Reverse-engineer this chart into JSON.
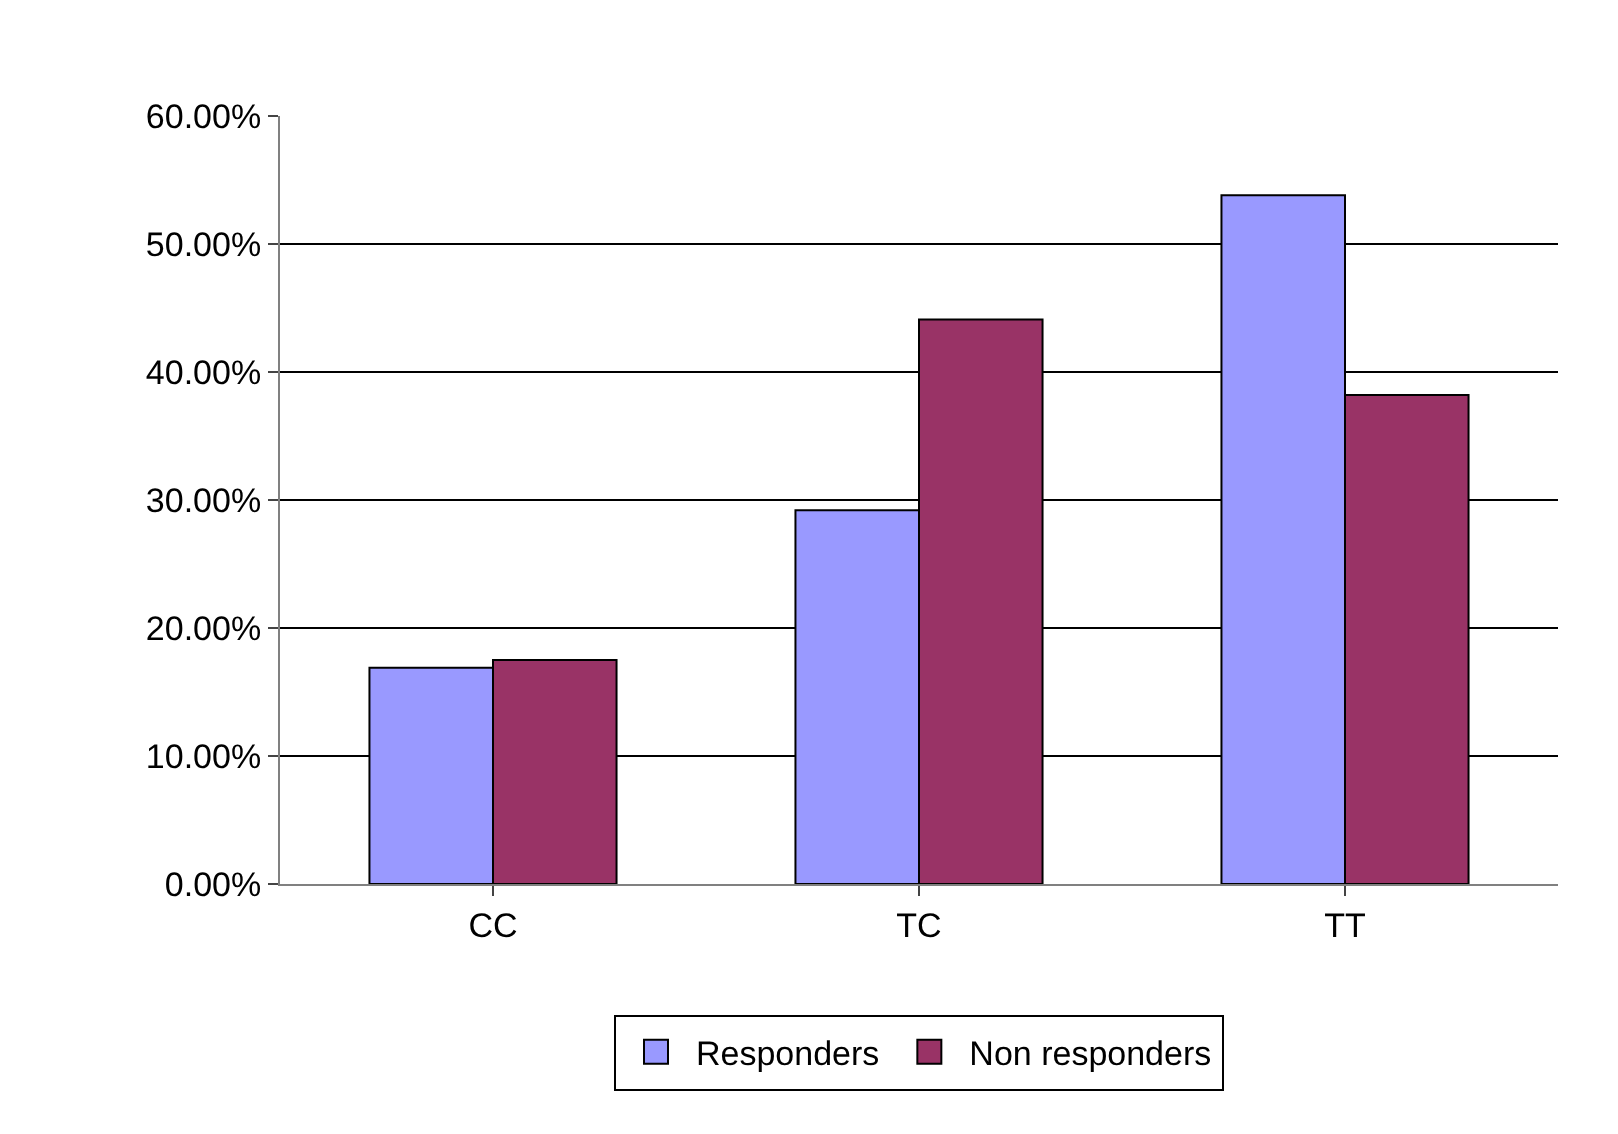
{
  "chart_data": {
    "type": "bar",
    "categories": [
      "CC",
      "TC",
      "TT"
    ],
    "series": [
      {
        "name": "Responders",
        "color": "#9999ff",
        "values": [
          16.9,
          29.2,
          53.8
        ]
      },
      {
        "name": "Non responders",
        "color": "#993366",
        "values": [
          17.5,
          44.1,
          38.2
        ]
      }
    ],
    "ylim": [
      0,
      60
    ],
    "yticks": [
      {
        "value": 0,
        "label": "0.00%"
      },
      {
        "value": 10,
        "label": "10.00%"
      },
      {
        "value": 20,
        "label": "20.00%"
      },
      {
        "value": 30,
        "label": "30.00%"
      },
      {
        "value": 40,
        "label": "40.00%"
      },
      {
        "value": 50,
        "label": "50.00%"
      },
      {
        "value": 60,
        "label": "60.00%"
      }
    ],
    "grid": "y",
    "legend": "bottom"
  }
}
